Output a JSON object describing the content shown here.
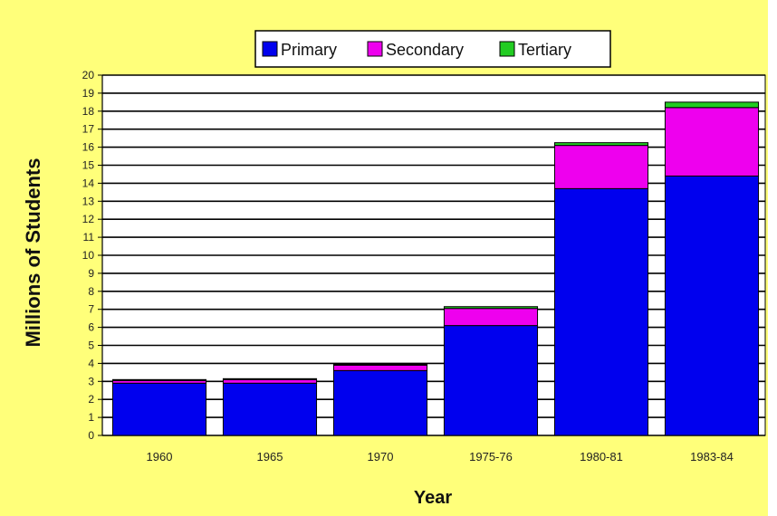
{
  "chart_data": {
    "type": "bar",
    "stacked": true,
    "categories": [
      "1960",
      "1965",
      "1970",
      "1975-76",
      "1980-81",
      "1983-84"
    ],
    "series": [
      {
        "name": "Primary",
        "color": "#0000ee",
        "values": [
          2.9,
          2.9,
          3.6,
          6.1,
          13.7,
          14.4
        ]
      },
      {
        "name": "Secondary",
        "color": "#ee00ee",
        "values": [
          0.15,
          0.2,
          0.3,
          0.95,
          2.4,
          3.8
        ]
      },
      {
        "name": "Tertiary",
        "color": "#22cc22",
        "values": [
          0.05,
          0.05,
          0.05,
          0.1,
          0.15,
          0.3
        ]
      }
    ],
    "xlabel": "Year",
    "ylabel": "Millions of Students",
    "ylim": [
      0,
      20
    ],
    "yticks": [
      0,
      1,
      2,
      3,
      4,
      5,
      6,
      7,
      8,
      9,
      10,
      11,
      12,
      13,
      14,
      15,
      16,
      17,
      18,
      19,
      20
    ],
    "grid": true,
    "legend_position": "top-center",
    "colors": {
      "background": "#ffff7a",
      "plot_background": "#ffffff",
      "gridline": "#000000",
      "bar_border": "#000000"
    }
  }
}
